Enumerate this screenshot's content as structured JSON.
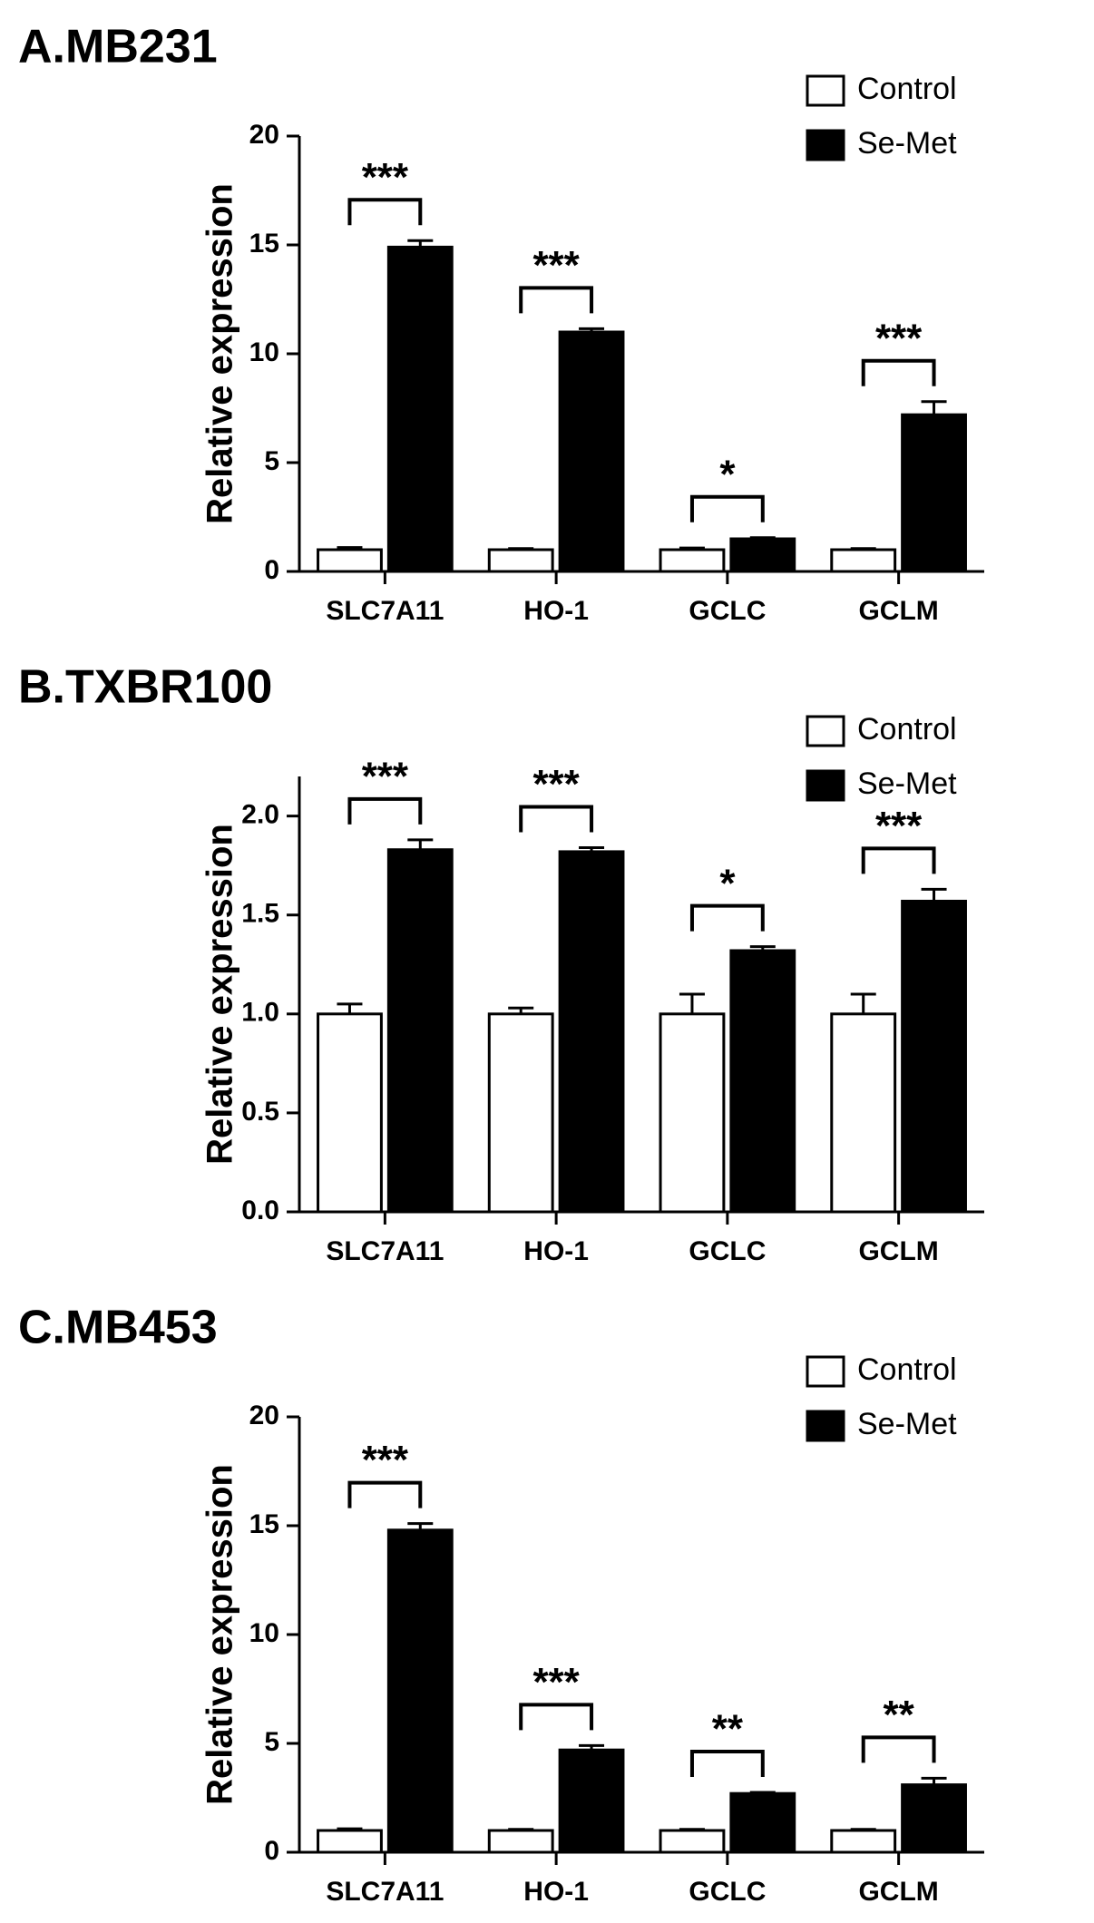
{
  "chart_data": [
    {
      "type": "bar",
      "title": "A.MB231",
      "ylabel": "Relative expression",
      "categories": [
        "SLC7A11",
        "HO-1",
        "GCLC",
        "GCLM"
      ],
      "series": [
        {
          "name": "Control",
          "color": "#ffffff",
          "values": [
            1,
            1,
            1,
            1
          ],
          "errors": [
            0.1,
            0.05,
            0.08,
            0.05
          ]
        },
        {
          "name": "Se-Met",
          "color": "#000000",
          "values": [
            14.9,
            11.0,
            1.5,
            7.2
          ],
          "errors": [
            0.3,
            0.15,
            0.05,
            0.6
          ]
        }
      ],
      "significance": [
        "***",
        "***",
        "*",
        "***"
      ],
      "ylim": [
        0,
        20
      ],
      "yticks": [
        0,
        5,
        10,
        15,
        20
      ],
      "grid": false,
      "legend": "top-right"
    },
    {
      "type": "bar",
      "title": "B.TXBR100",
      "ylabel": "Relative expression",
      "categories": [
        "SLC7A11",
        "HO-1",
        "GCLC",
        "GCLM"
      ],
      "series": [
        {
          "name": "Control",
          "color": "#ffffff",
          "values": [
            1.0,
            1.0,
            1.0,
            1.0
          ],
          "errors": [
            0.05,
            0.03,
            0.1,
            0.1
          ]
        },
        {
          "name": "Se-Met",
          "color": "#000000",
          "values": [
            1.83,
            1.82,
            1.32,
            1.57
          ],
          "errors": [
            0.05,
            0.02,
            0.02,
            0.06
          ]
        }
      ],
      "significance": [
        "***",
        "***",
        "*",
        "***"
      ],
      "ylim": [
        0,
        2.2
      ],
      "yticks": [
        {
          "value": 0,
          "label": "0.0"
        },
        0.5,
        {
          "value": 1,
          "label": "1.0"
        },
        1.5,
        {
          "value": 2,
          "label": "2.0"
        }
      ],
      "grid": false,
      "legend": "top-right"
    },
    {
      "type": "bar",
      "title": "C.MB453",
      "ylabel": "Relative expression",
      "categories": [
        "SLC7A11",
        "HO-1",
        "GCLC",
        "GCLM"
      ],
      "series": [
        {
          "name": "Control",
          "color": "#ffffff",
          "values": [
            1,
            1,
            1,
            1
          ],
          "errors": [
            0.08,
            0.05,
            0.05,
            0.05
          ]
        },
        {
          "name": "Se-Met",
          "color": "#000000",
          "values": [
            14.8,
            4.7,
            2.7,
            3.1
          ],
          "errors": [
            0.3,
            0.2,
            0.05,
            0.3
          ]
        }
      ],
      "significance": [
        "***",
        "***",
        "**",
        "**"
      ],
      "ylim": [
        0,
        20
      ],
      "yticks": [
        0,
        5,
        10,
        15,
        20
      ],
      "grid": false,
      "legend": "top-right"
    }
  ]
}
